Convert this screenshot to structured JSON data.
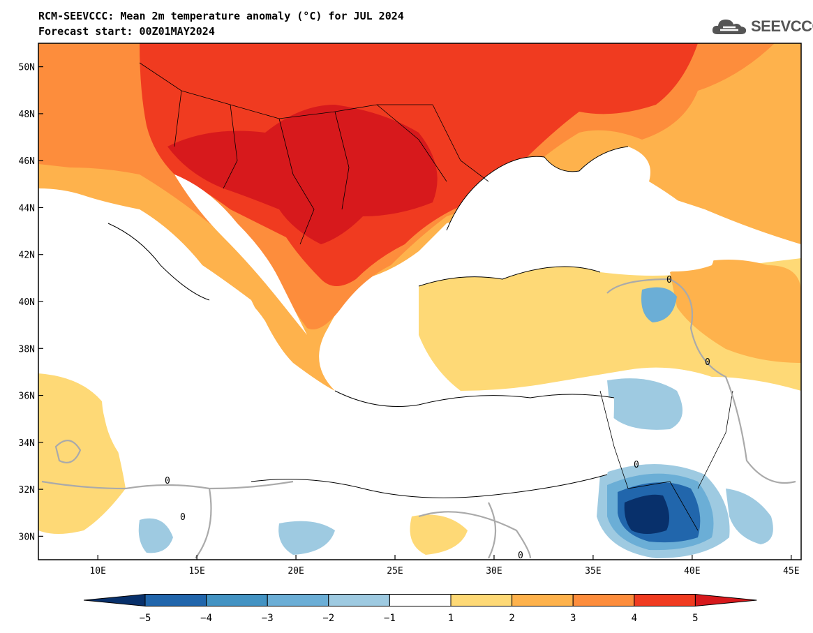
{
  "title_line1": "RCM-SEEVCCC: Mean 2m temperature anomaly (°C) for JUL 2024",
  "title_line2": "Forecast start: 00Z01MAY2024",
  "logo_text": "SEEVCCC",
  "lat_ticks": [
    {
      "v": 50,
      "label": "50N"
    },
    {
      "v": 48,
      "label": "48N"
    },
    {
      "v": 46,
      "label": "46N"
    },
    {
      "v": 44,
      "label": "44N"
    },
    {
      "v": 42,
      "label": "42N"
    },
    {
      "v": 40,
      "label": "40N"
    },
    {
      "v": 38,
      "label": "38N"
    },
    {
      "v": 36,
      "label": "36N"
    },
    {
      "v": 34,
      "label": "34N"
    },
    {
      "v": 32,
      "label": "32N"
    },
    {
      "v": 30,
      "label": "30N"
    }
  ],
  "lon_ticks": [
    {
      "v": 10,
      "label": "10E"
    },
    {
      "v": 15,
      "label": "15E"
    },
    {
      "v": 20,
      "label": "20E"
    },
    {
      "v": 25,
      "label": "25E"
    },
    {
      "v": 30,
      "label": "30E"
    },
    {
      "v": 35,
      "label": "35E"
    },
    {
      "v": 40,
      "label": "40E"
    },
    {
      "v": 45,
      "label": "45E"
    }
  ],
  "extent": {
    "lon_min": 7,
    "lon_max": 45.5,
    "lat_min": 29,
    "lat_max": 51
  },
  "colorbar": {
    "levels": [
      "−5",
      "−4",
      "−3",
      "−2",
      "−1",
      "1",
      "2",
      "3",
      "4",
      "5"
    ],
    "colors": [
      "#08306b",
      "#2166ac",
      "#4393c3",
      "#6baed6",
      "#9ecae1",
      "#ffffff",
      "#fed976",
      "#feb24c",
      "#fd8d3c",
      "#f03b20",
      "#d7191c"
    ]
  },
  "contour_label": "0"
}
